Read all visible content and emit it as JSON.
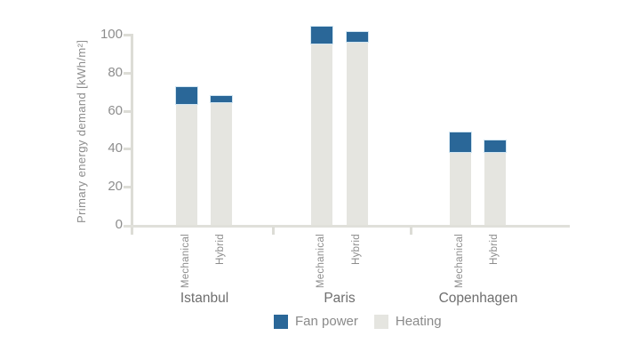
{
  "chart_data": {
    "type": "bar",
    "stacked": true,
    "ylabel": "Primary energy demand [kWh/m²]",
    "ylim": [
      0,
      100
    ],
    "yticks": [
      0,
      20,
      40,
      60,
      80,
      100
    ],
    "ytick_labels": [
      "0",
      "20",
      "40",
      "60",
      "80",
      "100"
    ],
    "grid": false,
    "legend_position": "bottom-center",
    "series_order": [
      "Fan power",
      "Heating"
    ],
    "colors": {
      "fan_power": "#2a6798",
      "heating": "#e5e5e0",
      "axis": "#dcdcd6",
      "tick_text": "#8d8d8d",
      "city_text": "#6e6e6e"
    },
    "groups": [
      {
        "city": "Istanbul",
        "bars": [
          {
            "label": "Mechanical",
            "heating": 63,
            "fan_power": 10,
            "total": 73
          },
          {
            "label": "Hybrid",
            "heating": 64,
            "fan_power": 4,
            "total": 68
          }
        ]
      },
      {
        "city": "Paris",
        "bars": [
          {
            "label": "Mechanical",
            "heating": 95,
            "fan_power": 10,
            "total": 105
          },
          {
            "label": "Hybrid",
            "heating": 96,
            "fan_power": 6,
            "total": 102
          }
        ]
      },
      {
        "city": "Copenhagen",
        "bars": [
          {
            "label": "Mechanical",
            "heating": 38,
            "fan_power": 11,
            "total": 49
          },
          {
            "label": "Hybrid",
            "heating": 38,
            "fan_power": 7,
            "total": 45
          }
        ]
      }
    ],
    "legend": [
      {
        "label": "Fan power",
        "color": "#2a6798"
      },
      {
        "label": "Heating",
        "color": "#e5e5e0"
      }
    ]
  }
}
